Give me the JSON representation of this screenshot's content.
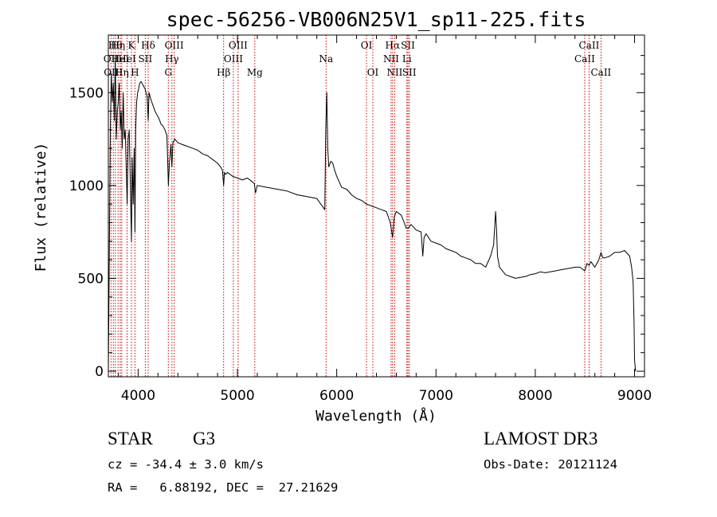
{
  "chart_data": {
    "type": "line",
    "title": "spec-56256-VB006N25V1_sp11-225.fits",
    "xlabel": "Wavelength (Å)",
    "ylabel": "Flux (relative)",
    "xlim": [
      3700,
      9100
    ],
    "ylim": [
      -30,
      1810
    ],
    "xticks": [
      {
        "value": 4000,
        "label": "4000"
      },
      {
        "value": 5000,
        "label": "5000"
      },
      {
        "value": 6000,
        "label": "6000"
      },
      {
        "value": 7000,
        "label": "7000"
      },
      {
        "value": 8000,
        "label": "8000"
      },
      {
        "value": 9000,
        "label": "9000"
      }
    ],
    "yticks": [
      {
        "value": 0,
        "label": "0"
      },
      {
        "value": 500,
        "label": "500"
      },
      {
        "value": 1000,
        "label": "1000"
      },
      {
        "value": 1500,
        "label": "1500"
      }
    ],
    "series": [
      {
        "name": "spectrum",
        "color": "#000000",
        "x": [
          3700,
          3720,
          3730,
          3740,
          3750,
          3760,
          3770,
          3780,
          3790,
          3800,
          3810,
          3820,
          3830,
          3840,
          3850,
          3860,
          3870,
          3880,
          3889,
          3900,
          3910,
          3920,
          3933,
          3940,
          3950,
          3960,
          3968,
          3975,
          3985,
          3995,
          4005,
          4015,
          4030,
          4050,
          4070,
          4090,
          4101,
          4110,
          4130,
          4150,
          4170,
          4190,
          4210,
          4230,
          4250,
          4270,
          4290,
          4305,
          4315,
          4330,
          4340,
          4350,
          4370,
          4400,
          4450,
          4500,
          4550,
          4600,
          4650,
          4700,
          4750,
          4800,
          4830,
          4850,
          4861,
          4870,
          4880,
          4900,
          4950,
          5000,
          5050,
          5100,
          5150,
          5170,
          5183,
          5200,
          5300,
          5400,
          5500,
          5600,
          5700,
          5800,
          5880,
          5890,
          5900,
          5910,
          5920,
          5940,
          5960,
          5980,
          6000,
          6050,
          6100,
          6150,
          6200,
          6250,
          6300,
          6350,
          6400,
          6450,
          6500,
          6540,
          6563,
          6580,
          6600,
          6650,
          6680,
          6700,
          6720,
          6750,
          6800,
          6850,
          6867,
          6880,
          6900,
          6950,
          7000,
          7050,
          7100,
          7150,
          7200,
          7250,
          7300,
          7350,
          7400,
          7450,
          7500,
          7550,
          7580,
          7600,
          7610,
          7620,
          7640,
          7670,
          7700,
          7750,
          7800,
          7850,
          7900,
          7950,
          8000,
          8050,
          8100,
          8150,
          8200,
          8250,
          8300,
          8350,
          8400,
          8450,
          8498,
          8520,
          8542,
          8560,
          8600,
          8640,
          8662,
          8680,
          8700,
          8750,
          8800,
          8850,
          8900,
          8950,
          8970,
          8985,
          8995,
          9000,
          9010
        ],
        "y": [
          0,
          1300,
          1600,
          1450,
          1550,
          1350,
          1700,
          1250,
          1400,
          1450,
          1550,
          1300,
          1400,
          1200,
          1500,
          1250,
          1300,
          1100,
          900,
          1250,
          1300,
          1050,
          700,
          1150,
          900,
          1200,
          750,
          1300,
          1450,
          1500,
          1520,
          1550,
          1560,
          1540,
          1520,
          1480,
          1350,
          1500,
          1460,
          1430,
          1400,
          1380,
          1360,
          1330,
          1320,
          1300,
          1270,
          1000,
          1120,
          1220,
          1100,
          1230,
          1250,
          1230,
          1220,
          1210,
          1200,
          1190,
          1170,
          1160,
          1140,
          1120,
          1100,
          1080,
          1000,
          1070,
          1060,
          1070,
          1050,
          1040,
          1030,
          1040,
          1020,
          1010,
          960,
          1000,
          990,
          980,
          970,
          950,
          940,
          930,
          870,
          1300,
          1500,
          1200,
          1100,
          1130,
          1120,
          1080,
          1050,
          990,
          980,
          950,
          930,
          920,
          900,
          890,
          880,
          870,
          860,
          800,
          720,
          830,
          860,
          840,
          800,
          770,
          770,
          790,
          760,
          750,
          620,
          720,
          740,
          700,
          690,
          680,
          660,
          650,
          640,
          620,
          610,
          600,
          580,
          580,
          560,
          620,
          680,
          860,
          760,
          620,
          560,
          540,
          520,
          510,
          500,
          505,
          510,
          520,
          525,
          535,
          530,
          535,
          540,
          545,
          550,
          555,
          560,
          560,
          540,
          580,
          570,
          590,
          560,
          600,
          640,
          610,
          610,
          620,
          640,
          640,
          650,
          620,
          560,
          480,
          260,
          60,
          0
        ]
      }
    ],
    "lines_top": [
      {
        "wavelength": 3727,
        "label": "OII",
        "row": 2
      },
      {
        "wavelength": 3750,
        "label": "OIII",
        "row": 3
      },
      {
        "wavelength": 3770,
        "label": "Hθ",
        "row": 1
      },
      {
        "wavelength": 3798,
        "label": "Hη",
        "row": 1
      },
      {
        "wavelength": 3820,
        "label": "HeI",
        "row": 2
      },
      {
        "wavelength": 3835,
        "label": "Hη",
        "row": 3
      },
      {
        "wavelength": 3889,
        "label": "HeI",
        "row": 2
      },
      {
        "wavelength": 3933,
        "label": "K",
        "row": 1
      },
      {
        "wavelength": 3968,
        "label": "H",
        "row": 3
      },
      {
        "wavelength": 4072,
        "label": "SII",
        "row": 2
      },
      {
        "wavelength": 4101,
        "label": "Hδ",
        "row": 1
      },
      {
        "wavelength": 4304,
        "label": "G",
        "row": 3
      },
      {
        "wavelength": 4340,
        "label": "Hγ",
        "row": 2
      },
      {
        "wavelength": 4363,
        "label": "OIII",
        "row": 1
      },
      {
        "wavelength": 4861,
        "label": "Hβ",
        "row": 3
      },
      {
        "wavelength": 4959,
        "label": "OIII",
        "row": 2
      },
      {
        "wavelength": 5007,
        "label": "OIII",
        "row": 1
      },
      {
        "wavelength": 5175,
        "label": "Mg",
        "row": 3
      },
      {
        "wavelength": 5893,
        "label": "Na",
        "row": 2
      },
      {
        "wavelength": 6300,
        "label": "OI",
        "row": 1
      },
      {
        "wavelength": 6364,
        "label": "OI",
        "row": 3
      },
      {
        "wavelength": 6548,
        "label": "NII",
        "row": 2
      },
      {
        "wavelength": 6563,
        "label": "Hα",
        "row": 1
      },
      {
        "wavelength": 6584,
        "label": "NII",
        "row": 3
      },
      {
        "wavelength": 6707,
        "label": "Li",
        "row": 2
      },
      {
        "wavelength": 6717,
        "label": "SII",
        "row": 1
      },
      {
        "wavelength": 6731,
        "label": "SII",
        "row": 3
      },
      {
        "wavelength": 8498,
        "label": "CaII",
        "row": 2
      },
      {
        "wavelength": 8542,
        "label": "CaII",
        "row": 1
      },
      {
        "wavelength": 8662,
        "label": "CaII",
        "row": 3
      }
    ],
    "line_color": "#cc0000"
  },
  "info": {
    "class_label": "STAR",
    "subclass_label": "G3",
    "survey": "LAMOST DR3",
    "cz_text": "cz = -34.4 ± 3.0 km/s",
    "obs_date_text": "Obs-Date: 20121124",
    "coords_text": "RA =   6.88192, DEC =  27.21629"
  }
}
